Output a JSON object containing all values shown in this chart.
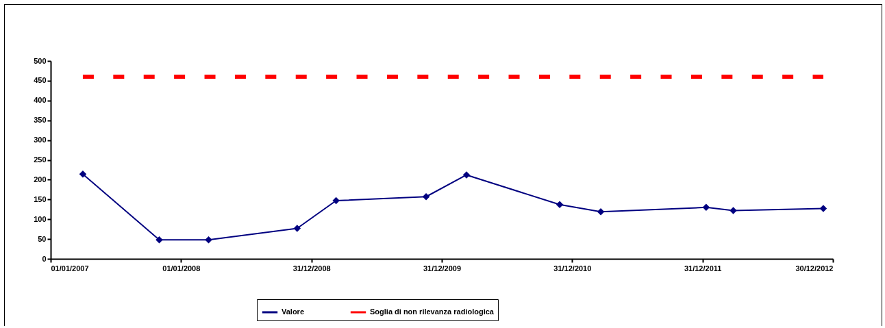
{
  "chart_data": {
    "type": "line",
    "legend": "bottom",
    "grid": false,
    "xlim": [
      "2007-01-01",
      "2012-12-30"
    ],
    "xticks": [
      {
        "value": "2007-01-01",
        "label": "01/01/2007"
      },
      {
        "value": "2008-01-01",
        "label": "01/01/2008"
      },
      {
        "value": "2008-12-31",
        "label": "31/12/2008"
      },
      {
        "value": "2009-12-31",
        "label": "31/12/2009"
      },
      {
        "value": "2010-12-31",
        "label": "31/12/2010"
      },
      {
        "value": "2011-12-31",
        "label": "31/12/2011"
      },
      {
        "value": "2012-12-30",
        "label": "30/12/2012"
      }
    ],
    "ylim": [
      0,
      500
    ],
    "yticks": [
      0,
      50,
      100,
      150,
      200,
      250,
      300,
      350,
      400,
      450,
      500
    ],
    "x": [
      "2007-04-01",
      "2007-11-01",
      "2008-03-18",
      "2008-11-21",
      "2009-03-10",
      "2009-11-17",
      "2010-03-10",
      "2010-11-26",
      "2011-03-21",
      "2012-01-10",
      "2012-03-26",
      "2012-12-03"
    ],
    "series": [
      {
        "name": "Valore",
        "color": "#000080",
        "marker": "diamond",
        "line_style": "solid",
        "values": [
          214,
          48,
          48,
          77,
          147,
          157,
          212,
          137,
          119,
          130,
          122,
          127
        ]
      },
      {
        "name": "Soglia di non rilevanza radiologica",
        "color": "#ff0000",
        "marker": "none",
        "line_style": "dashed",
        "x": [
          "2007-04-01",
          "2012-12-03"
        ],
        "values": [
          460,
          460
        ]
      }
    ]
  }
}
